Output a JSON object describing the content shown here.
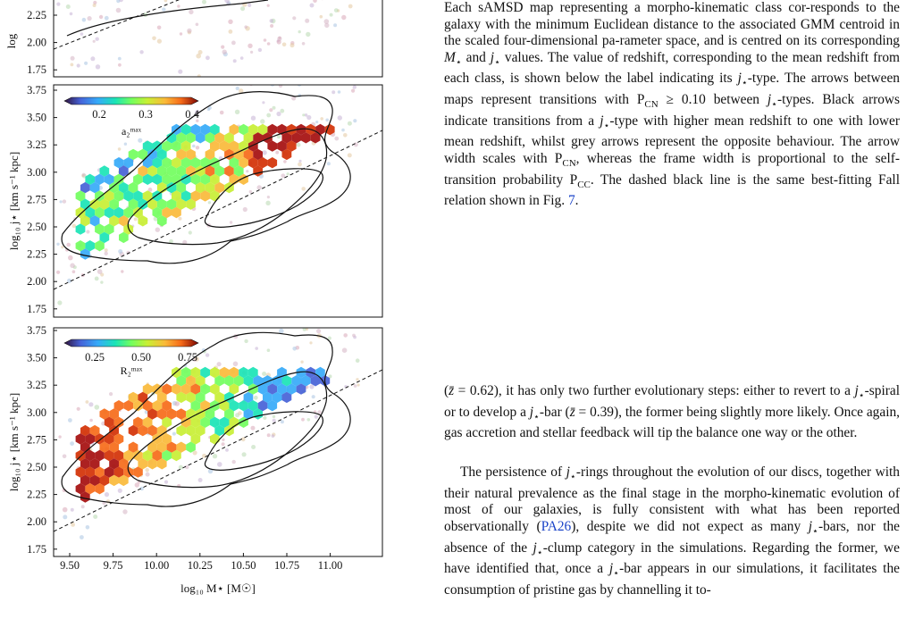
{
  "figure": {
    "colors": {
      "density_contour": "#111111",
      "fall_relation": "#111111",
      "frame": "#111111",
      "scatter_tint": "#c8a0b0"
    },
    "panels": [
      {
        "id": "top-partial",
        "ylabel": "log",
        "yticks": [
          "2.25",
          "2.00",
          "1.75"
        ]
      },
      {
        "id": "a2max",
        "ylabel": "log₁₀ j⋆ [km s⁻¹ kpc]",
        "yticks": [
          "3.75",
          "3.50",
          "3.25",
          "3.00",
          "2.75",
          "2.50",
          "2.25",
          "2.00",
          "1.75"
        ],
        "colorbar": {
          "label": "a₂ᵐᵃˣ",
          "ticks": [
            "0.2",
            "0.3",
            "0.4"
          ],
          "vmin": 0.1,
          "vmax": 0.45
        }
      },
      {
        "id": "R2max",
        "ylabel": "log₁₀ j⋆ [km s⁻¹ kpc]",
        "yticks": [
          "3.75",
          "3.50",
          "3.25",
          "3.00",
          "2.75",
          "2.50",
          "2.25",
          "2.00",
          "1.75"
        ],
        "colorbar": {
          "label": "R₂ᵐᵃˣ",
          "ticks": [
            "0.25",
            "0.50",
            "0.75"
          ],
          "vmin": 0.05,
          "vmax": 0.95
        }
      }
    ],
    "xticks": [
      "9.50",
      "9.75",
      "10.00",
      "10.25",
      "10.50",
      "10.75",
      "11.00"
    ],
    "xlabel": "log₁₀ M⋆ [M☉]"
  },
  "text": {
    "caption_paragraph": [
      {
        "t": "Each sAMSD map representing a morpho-kinematic class cor-responds to the galaxy with the minimum Euclidean distance to the associated GMM centroid in the scaled four-dimensional pa-rameter space, and is centred on its corresponding "
      },
      {
        "t": "M",
        "i": true
      },
      {
        "t": "⋆",
        "s": true
      },
      {
        "t": " and "
      },
      {
        "t": "j",
        "i": true
      },
      {
        "t": "⋆",
        "s": true
      },
      {
        "t": " values. The value of redshift, corresponding to the mean redshift from each class, is shown below the label indicating its "
      },
      {
        "t": "j",
        "i": true
      },
      {
        "t": "⋆",
        "s": true
      },
      {
        "t": "-type. The arrows between maps represent transitions with P"
      },
      {
        "t": "CN",
        "s": true
      },
      {
        "t": " ≥ 0.10 between "
      },
      {
        "t": "j",
        "i": true
      },
      {
        "t": "⋆",
        "s": true
      },
      {
        "t": "-types. Black arrows indicate transitions from a "
      },
      {
        "t": "j",
        "i": true
      },
      {
        "t": "⋆",
        "s": true
      },
      {
        "t": "-type with higher mean redshift to one with lower mean redshift, whilst grey arrows represent the opposite behaviour. The arrow width scales with P"
      },
      {
        "t": "CN",
        "s": true
      },
      {
        "t": ", whereas the frame width is proportional to the self-transition probability P"
      },
      {
        "t": "CC",
        "s": true
      },
      {
        "t": ". The dashed black line is the same best-fitting Fall relation shown in Fig. "
      },
      {
        "t": "7",
        "ref": true
      },
      {
        "t": "."
      }
    ],
    "body_paragraph_1": [
      {
        "t": "("
      },
      {
        "t": "z̄",
        "i": true
      },
      {
        "t": " = 0.62), it has only two further evolutionary steps: either to revert to a "
      },
      {
        "t": "j",
        "i": true
      },
      {
        "t": "⋆",
        "s": true
      },
      {
        "t": "-spiral or to develop a "
      },
      {
        "t": "j",
        "i": true
      },
      {
        "t": "⋆",
        "s": true
      },
      {
        "t": "-bar ("
      },
      {
        "t": "z̄",
        "i": true
      },
      {
        "t": " = 0.39), the former being slightly more likely. Once again, gas accretion and stellar feedback will tip the balance one way or the other."
      }
    ],
    "body_paragraph_2": [
      {
        "t": "The persistence of "
      },
      {
        "t": "j",
        "i": true
      },
      {
        "t": "⋆",
        "s": true
      },
      {
        "t": "-rings throughout the evolution of our discs, together with their natural prevalence as the final stage in the morpho-kinematic evolution of most of our galaxies, is fully consistent with what has been reported observationally ("
      },
      {
        "t": "PA26",
        "ref": true
      },
      {
        "t": "), despite we did not expect as many "
      },
      {
        "t": "j",
        "i": true
      },
      {
        "t": "⋆",
        "s": true
      },
      {
        "t": "-bars, nor the absence of the "
      },
      {
        "t": "j",
        "i": true
      },
      {
        "t": "⋆",
        "s": true
      },
      {
        "t": "-clump category in the simulations. Regarding the former, we have identified that, once a "
      },
      {
        "t": "j",
        "i": true
      },
      {
        "t": "⋆",
        "s": true
      },
      {
        "t": "-bar appears in our simulations, it facilitates the consumption of pristine gas by channelling it to-"
      }
    ]
  }
}
